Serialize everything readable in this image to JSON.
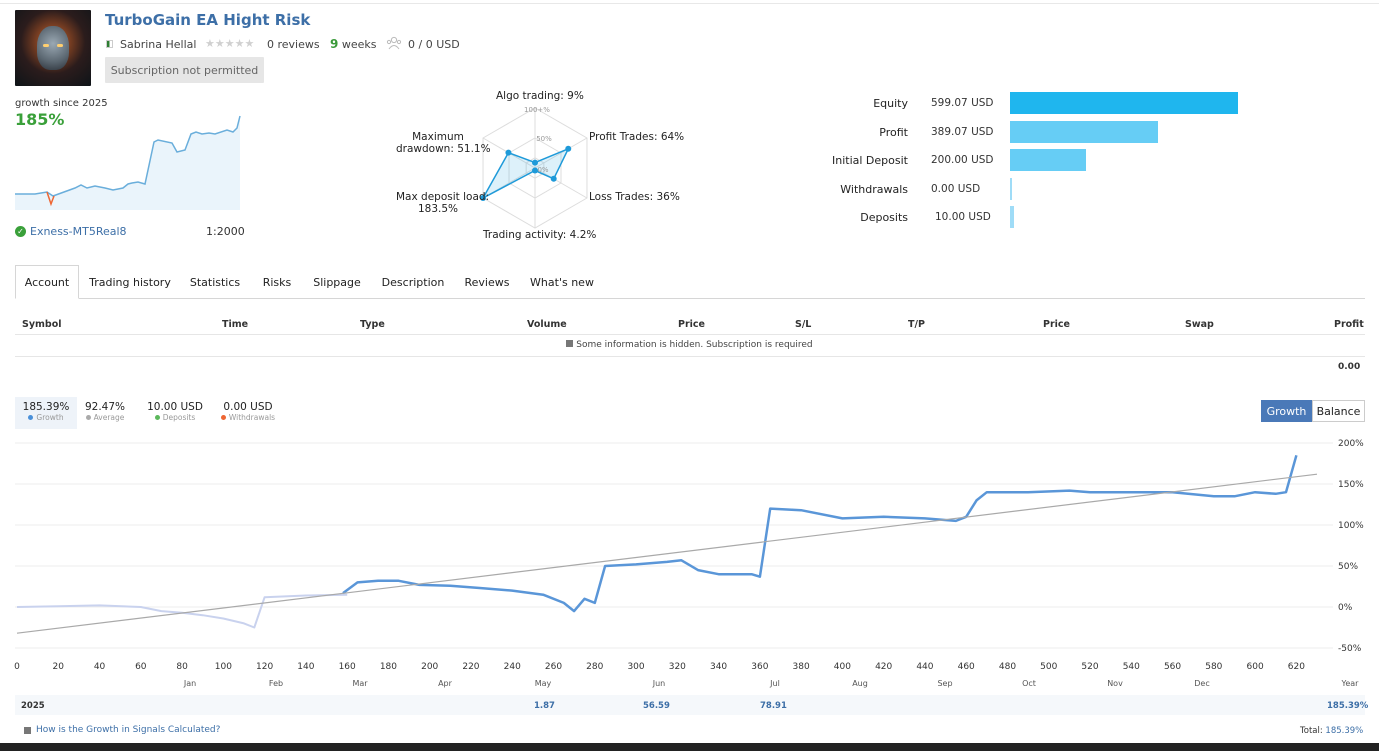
{
  "header": {
    "title": "TurboGain EA Hight Risk",
    "author": "Sabrina Hellal",
    "reviews": "0 reviews",
    "weeks_num": "9",
    "weeks_label": "weeks",
    "subscribers": "0 / 0 USD",
    "subscription_button": "Subscription not permitted",
    "rating_stars": 0
  },
  "summary": {
    "growth_since": "growth since 2025",
    "growth_value": "185%",
    "broker": "Exness-MT5Real8",
    "leverage": "1:2000"
  },
  "radar": {
    "algo": "Algo trading: 9%",
    "profit_trades": "Profit Trades: 64%",
    "loss_trades": "Loss Trades: 36%",
    "activity": "Trading activity: 4.2%",
    "deposit_load_1": "Max deposit load:",
    "deposit_load_2": "183.5%",
    "drawdown_1": "Maximum",
    "drawdown_2": "drawdown: 51.1%",
    "scale_100": "100+%",
    "scale_50": "50%",
    "scale_0": "0%",
    "values": {
      "algo": 9,
      "profit_trades": 64,
      "loss_trades": 36,
      "activity": 4.2,
      "deposit_load": 183.5,
      "drawdown": 51.1
    }
  },
  "balance_bars": [
    {
      "label": "Equity",
      "value": "599.07 USD",
      "amount": 599.07,
      "color": "#1fb6ee"
    },
    {
      "label": "Profit",
      "value": "389.07 USD",
      "amount": 389.07,
      "color": "#66cdf5"
    },
    {
      "label": "Initial Deposit",
      "value": "200.00 USD",
      "amount": 200.0,
      "color": "#66cdf5"
    },
    {
      "label": "Withdrawals",
      "value": "0.00 USD",
      "amount": 0.0,
      "color": "#9fdcf7"
    },
    {
      "label": "Deposits",
      "value": "10.00 USD",
      "amount": 10.0,
      "color": "#9fdcf7"
    }
  ],
  "tabs": [
    "Account",
    "Trading history",
    "Statistics",
    "Risks",
    "Slippage",
    "Description",
    "Reviews",
    "What's new"
  ],
  "table": {
    "headers": [
      "Symbol",
      "Time",
      "Type",
      "Volume",
      "Price",
      "S/L",
      "T/P",
      "Price",
      "Swap",
      "Profit"
    ],
    "hidden_message": "Some information is hidden. Subscription is required",
    "total_profit": "0.00"
  },
  "kpis": [
    {
      "value": "185.39%",
      "label": "Growth",
      "color": "#4a90d9"
    },
    {
      "value": "92.47%",
      "label": "Average",
      "color": "#aaaaaa"
    },
    {
      "value": "10.00 USD",
      "label": "Deposits",
      "color": "#5cb85c"
    },
    {
      "value": "0.00 USD",
      "label": "Withdrawals",
      "color": "#ee6633"
    }
  ],
  "toggle": {
    "growth": "Growth",
    "balance": "Balance"
  },
  "chart_data": {
    "type": "line",
    "y_ticks": [
      "200%",
      "150%",
      "100%",
      "50%",
      "0%",
      "-50%"
    ],
    "ylim": [
      -50,
      200
    ],
    "x_ticks": [
      "0",
      "20",
      "40",
      "60",
      "80",
      "100",
      "120",
      "140",
      "160",
      "180",
      "200",
      "220",
      "240",
      "260",
      "280",
      "300",
      "320",
      "340",
      "360",
      "380",
      "400",
      "420",
      "440",
      "460",
      "480",
      "500",
      "520",
      "540",
      "560",
      "580",
      "600",
      "620"
    ],
    "xlim": [
      0,
      630
    ],
    "months": [
      "Jan",
      "Feb",
      "Mar",
      "Apr",
      "May",
      "Jun",
      "Jul",
      "Aug",
      "Sep",
      "Oct",
      "Nov",
      "Dec",
      "Year"
    ],
    "series": [
      {
        "values_x": [
          0,
          20,
          40,
          60,
          70,
          80,
          90,
          100,
          110,
          115,
          120,
          140,
          160
        ],
        "values_y": [
          0,
          1,
          2,
          0,
          -5,
          -7,
          -10,
          -14,
          -20,
          -25,
          12,
          14,
          15
        ]
      },
      {
        "values_x": [
          158,
          165,
          175,
          185,
          195,
          210,
          225,
          240,
          255,
          265,
          270,
          275,
          280,
          285,
          300,
          315,
          322,
          330,
          340,
          350,
          356,
          360,
          365,
          380,
          400,
          420,
          440,
          455,
          460,
          465,
          470,
          490,
          510,
          520,
          540,
          560,
          580,
          590,
          600,
          610,
          615,
          620
        ],
        "values_y": [
          17,
          30,
          32,
          32,
          27,
          26,
          23,
          20,
          15,
          5,
          -5,
          10,
          5,
          50,
          52,
          55,
          57,
          45,
          40,
          40,
          40,
          37,
          120,
          118,
          108,
          110,
          108,
          105,
          110,
          130,
          140,
          140,
          142,
          140,
          140,
          140,
          135,
          135,
          140,
          138,
          140,
          185
        ]
      },
      {
        "values_x": [
          0,
          630
        ],
        "values_y": [
          -32,
          162
        ]
      }
    ]
  },
  "year_row": {
    "year": "2025",
    "may": "1.87",
    "jun": "56.59",
    "jul": "78.91",
    "total_year": "185.39%"
  },
  "footer": {
    "link": "How is the Growth in Signals Calculated?",
    "total": "Total: ",
    "total_value": "185.39%"
  }
}
